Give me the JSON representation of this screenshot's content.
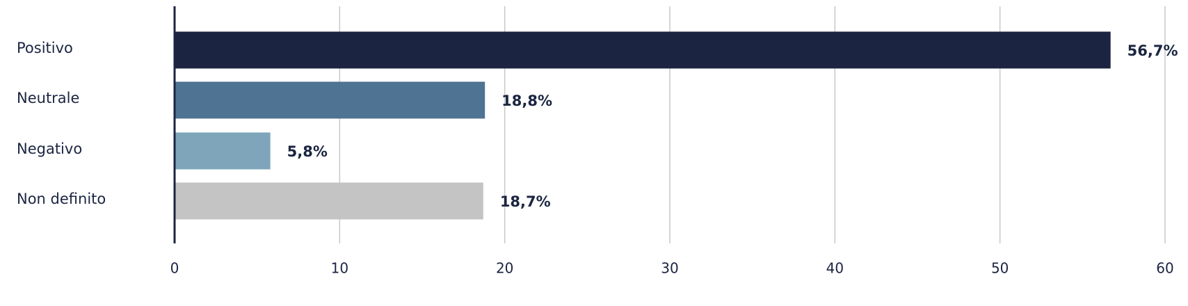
{
  "chart_data": {
    "type": "hbar",
    "categories": [
      "Positivo",
      "Neutrale",
      "Negativo",
      "Non definito"
    ],
    "values": [
      56.7,
      18.8,
      5.8,
      18.7
    ],
    "value_labels": [
      "56,7%",
      "18,8%",
      "5,8%",
      "18,7%"
    ],
    "colors": [
      "#1b2541",
      "#4e7393",
      "#7ea5ba",
      "#c3c4c3"
    ],
    "xlim": [
      0,
      60
    ],
    "xticks": [
      0,
      10,
      20,
      30,
      40,
      50,
      60
    ],
    "grid": true
  }
}
